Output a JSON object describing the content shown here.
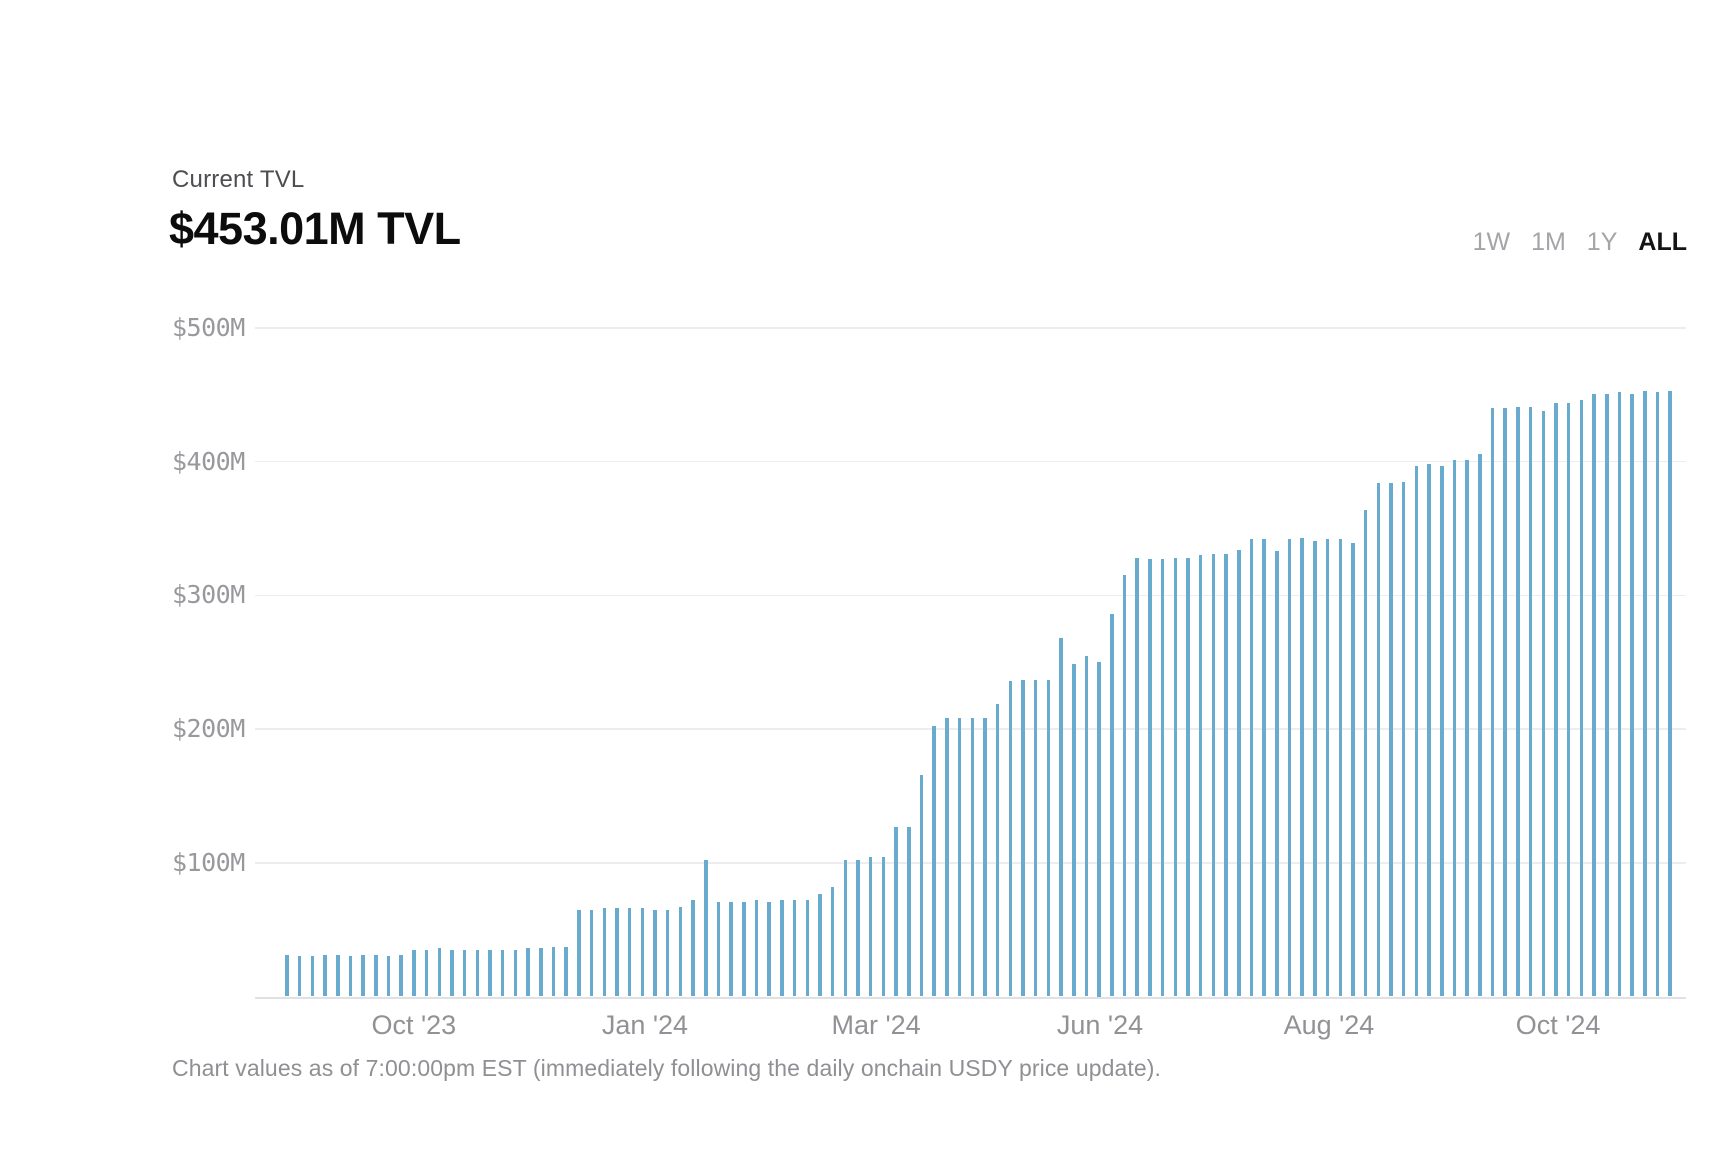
{
  "header": {
    "label": "Current TVL",
    "value": "$453.01M TVL"
  },
  "range_selector": {
    "options": [
      "1W",
      "1M",
      "1Y",
      "ALL"
    ],
    "active": "ALL"
  },
  "footnote": {
    "text": "Chart values as of 7:00:00pm EST (immediately following the daily onchain USDY price update)."
  },
  "chart_data": {
    "type": "bar",
    "title": "Current TVL",
    "current_value_label": "$453.01M TVL",
    "ylabel": "TVL",
    "values_unit": "USD millions",
    "ylim": [
      0,
      500
    ],
    "grid": true,
    "legend": "none",
    "bar_color": "#69abce",
    "y_ticks": [
      {
        "label": "$500M",
        "value": 500
      },
      {
        "label": "$400M",
        "value": 400
      },
      {
        "label": "$300M",
        "value": 300
      },
      {
        "label": "$200M",
        "value": 200
      },
      {
        "label": "$100M",
        "value": 100
      }
    ],
    "x_ticks": [
      {
        "label": "Oct '23",
        "pos": 0.111
      },
      {
        "label": "Jan '24",
        "pos": 0.2725
      },
      {
        "label": "Mar '24",
        "pos": 0.434
      },
      {
        "label": "Jun '24",
        "pos": 0.5905
      },
      {
        "label": "Aug '24",
        "pos": 0.7505
      },
      {
        "label": "Oct '24",
        "pos": 0.9106
      }
    ],
    "values": [
      31,
      30,
      30,
      31,
      31,
      30,
      31,
      31,
      30,
      31,
      35,
      35,
      36,
      35,
      35,
      35,
      35,
      35,
      35,
      36,
      36,
      37,
      37,
      65,
      65,
      66,
      66,
      66,
      66,
      65,
      65,
      67,
      72,
      102,
      71,
      71,
      71,
      72,
      71,
      72,
      72,
      72,
      77,
      82,
      102,
      102,
      104,
      104,
      127,
      127,
      166,
      202,
      208,
      208,
      208,
      208,
      219,
      236,
      237,
      237,
      237,
      268,
      249,
      255,
      250,
      286,
      315,
      328,
      327,
      327,
      328,
      328,
      330,
      331,
      331,
      334,
      342,
      342,
      333,
      342,
      343,
      341,
      342,
      342,
      339,
      364,
      384,
      384,
      385,
      397,
      398,
      397,
      401,
      401,
      406,
      440,
      440,
      441,
      441,
      438,
      444,
      444,
      446,
      451,
      451,
      452,
      451,
      453,
      452,
      453
    ]
  }
}
